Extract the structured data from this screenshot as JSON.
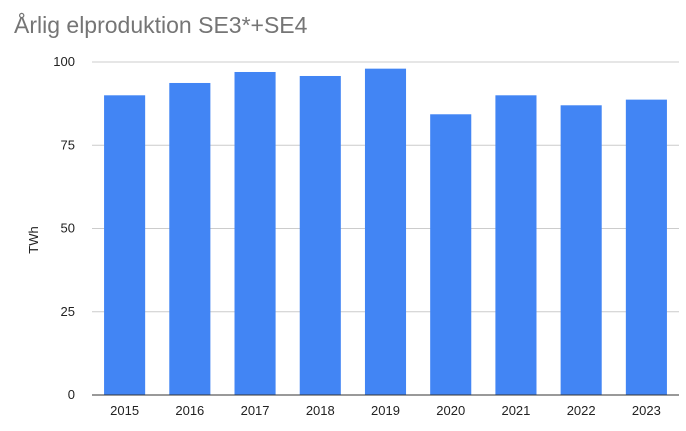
{
  "chart_data": {
    "type": "bar",
    "title": "Årlig elproduktion SE3*+SE4",
    "xlabel": "",
    "ylabel": "TWh",
    "categories": [
      "2015",
      "2016",
      "2017",
      "2018",
      "2019",
      "2020",
      "2021",
      "2022",
      "2023"
    ],
    "values": [
      90,
      93.7,
      97,
      95.8,
      98,
      84.3,
      90,
      87,
      88.7
    ],
    "ylim": [
      0,
      100
    ],
    "yticks": [
      "0",
      "25",
      "50",
      "75",
      "100"
    ],
    "grid": true,
    "legend": "none",
    "colors": {
      "bar": "#4285f4",
      "grid": "#cccccc",
      "axis": "#333333",
      "title": "#757575"
    }
  }
}
